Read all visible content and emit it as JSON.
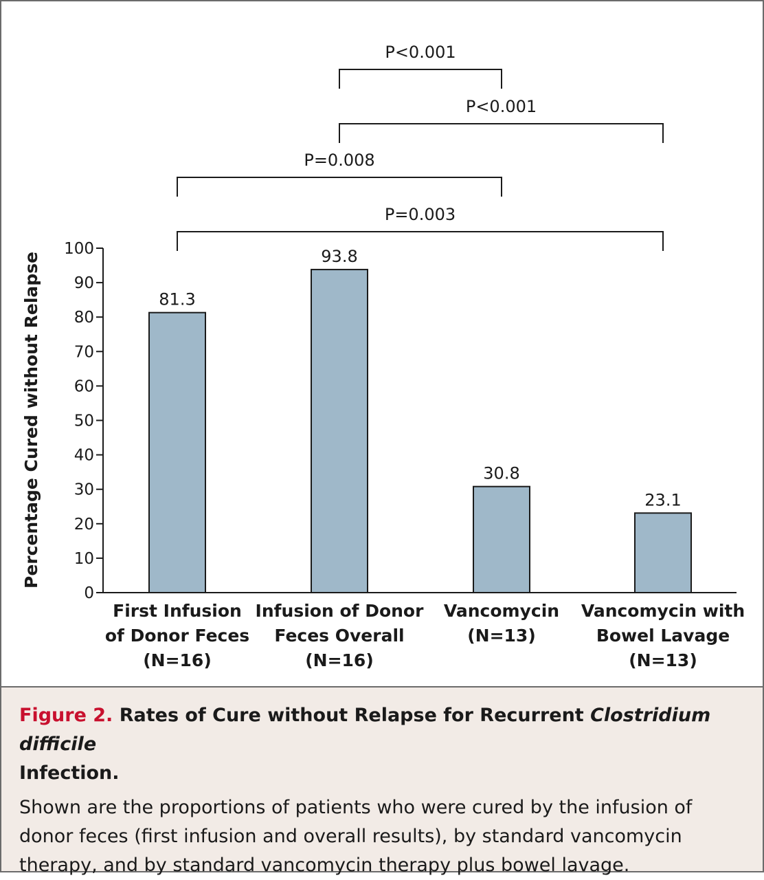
{
  "chart_data": {
    "type": "bar",
    "categories": [
      [
        "First Infusion",
        "of Donor Feces",
        "(N=16)"
      ],
      [
        "Infusion of Donor",
        "Feces Overall",
        "(N=16)"
      ],
      [
        "Vancomycin",
        "(N=13)"
      ],
      [
        "Vancomycin with",
        "Bowel Lavage",
        "(N=13)"
      ]
    ],
    "values": [
      81.3,
      93.8,
      30.8,
      23.1
    ],
    "value_labels": [
      "81.3",
      "93.8",
      "30.8",
      "23.1"
    ],
    "ylabel": "Percentage Cured without Relapse",
    "xlabel": "",
    "ylim": [
      0,
      100
    ],
    "yticks": [
      0,
      10,
      20,
      30,
      40,
      50,
      60,
      70,
      80,
      90,
      100
    ],
    "grid": false,
    "bar_color": "#9fb8c9",
    "comparisons": [
      {
        "from": 1,
        "to": 2,
        "label": "P<0.001"
      },
      {
        "from": 1,
        "to": 3,
        "label": "P<0.001"
      },
      {
        "from": 0,
        "to": 2,
        "label": "P=0.008"
      },
      {
        "from": 0,
        "to": 3,
        "label": "P=0.003"
      }
    ]
  },
  "caption": {
    "figure_label": "Figure 2.",
    "title_before": "Rates of Cure without Relapse for Recurrent ",
    "title_italic": "Clostridium difficile",
    "title_after": "Infection.",
    "body": "Shown are the proportions of patients who were cured by the infusion of donor feces (first infusion and overall results), by standard vancomycin therapy, and by standard vancomycin therapy plus bowel lavage."
  },
  "colors": {
    "figure_label": "#c8102e",
    "caption_background": "#f2ebe6"
  }
}
